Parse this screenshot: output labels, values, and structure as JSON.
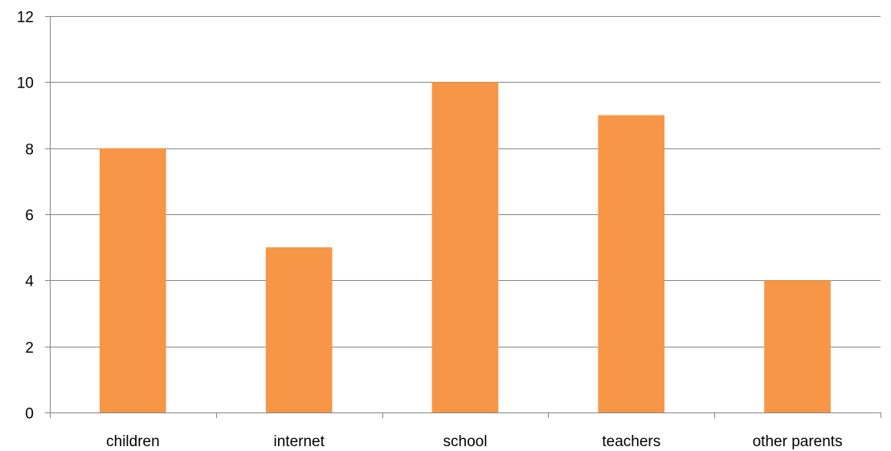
{
  "chart_data": {
    "type": "bar",
    "categories": [
      "children",
      "internet",
      "school",
      "teachers",
      "other parents"
    ],
    "values": [
      8,
      5,
      10,
      9,
      4
    ],
    "title": "",
    "xlabel": "",
    "ylabel": "",
    "ylim": [
      0,
      12
    ],
    "yticks": [
      "0",
      "2",
      "4",
      "6",
      "8",
      "10",
      "12"
    ],
    "ytick_values": [
      0,
      2,
      4,
      6,
      8,
      10,
      12
    ],
    "grid": true,
    "legend": "none",
    "colors": {
      "bar": "#F79646",
      "grid": "#868686"
    }
  }
}
